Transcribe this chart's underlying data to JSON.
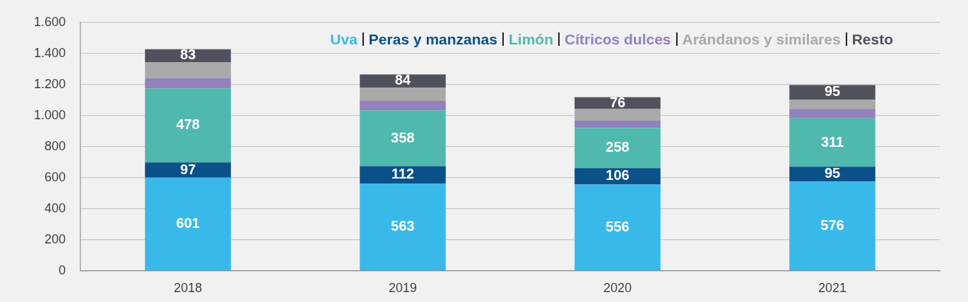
{
  "chart_data": {
    "type": "bar",
    "stacked": true,
    "categories": [
      "2018",
      "2019",
      "2020",
      "2021"
    ],
    "series": [
      {
        "name": "Uva",
        "color": "#39b9ea",
        "values": [
          601,
          563,
          556,
          576
        ],
        "value_labels": [
          "601",
          "563",
          "556",
          "576"
        ]
      },
      {
        "name": "Peras y manzanas",
        "color": "#0a5089",
        "values": [
          97,
          112,
          106,
          95
        ],
        "value_labels": [
          "97",
          "112",
          "106",
          "95"
        ]
      },
      {
        "name": "Limón",
        "color": "#4fb9ae",
        "values": [
          478,
          358,
          258,
          311
        ],
        "value_labels": [
          "478",
          "358",
          "258",
          "311"
        ]
      },
      {
        "name": "Cítricos dulces",
        "color": "#9281bd",
        "values": [
          65,
          62,
          48,
          62
        ]
      },
      {
        "name": "Arándanos y similares",
        "color": "#a9a9a9",
        "values": [
          104,
          86,
          75,
          58
        ]
      },
      {
        "name": "Resto",
        "color": "#4f525c",
        "values": [
          83,
          84,
          76,
          95
        ],
        "value_labels": [
          "83",
          "84",
          "76",
          "95"
        ]
      }
    ],
    "ylim": [
      0,
      1600
    ],
    "yticks": [
      0,
      200,
      400,
      600,
      800,
      {
        "value": 1000,
        "label": "1.000"
      },
      {
        "value": 1200,
        "label": "1.200"
      },
      {
        "value": 1400,
        "label": "1.400"
      },
      {
        "value": 1600,
        "label": "1.600"
      }
    ],
    "grid": "y",
    "legend": "top right"
  }
}
